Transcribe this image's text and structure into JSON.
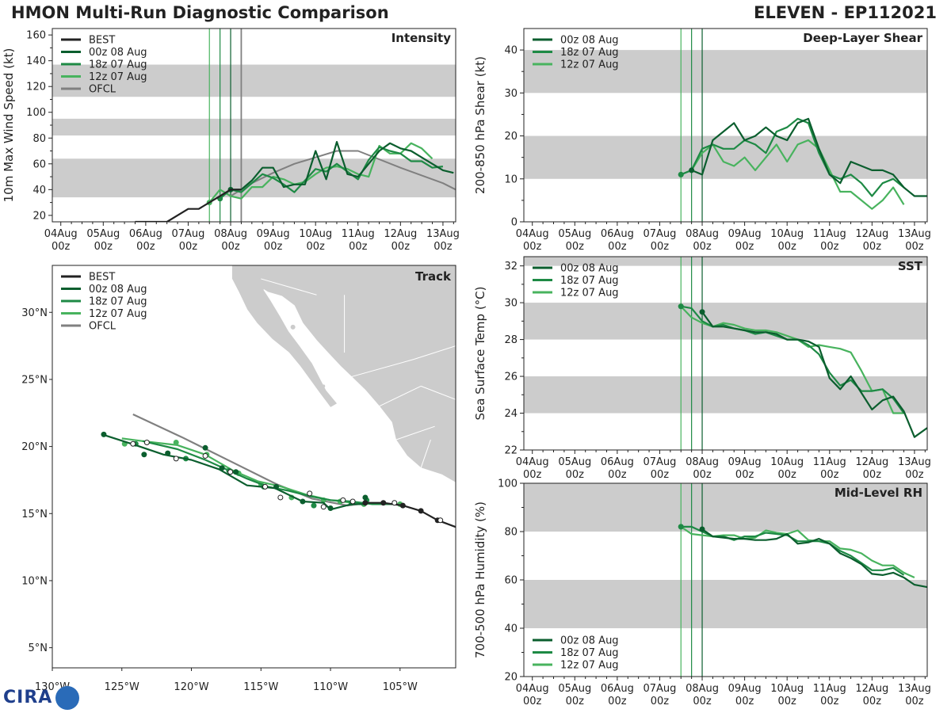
{
  "header": {
    "title": "HMON Multi-Run Diagnostic Comparison",
    "storm": "ELEVEN - EP112021"
  },
  "logo": {
    "text": "CIRA"
  },
  "colors": {
    "best": "#222222",
    "run00": "#0b5e2e",
    "run18": "#1e8a45",
    "run12": "#48b35e",
    "ofcl": "#808080",
    "band": "#cccccc",
    "land": "#cccccc"
  },
  "time_axis": {
    "ticks": [
      "04Aug",
      "05Aug",
      "06Aug",
      "07Aug",
      "08Aug",
      "09Aug",
      "10Aug",
      "11Aug",
      "12Aug",
      "13Aug"
    ],
    "tick_sub": "00z",
    "xlim": [
      -4.2,
      5.3
    ],
    "run_markers": [
      -0.5,
      -0.25,
      0.0
    ],
    "ofcl_marker": 0.25
  },
  "chart_data": [
    {
      "id": "intensity",
      "type": "line",
      "title": "Intensity",
      "ylabel": "10m Max Wind Speed (kt)",
      "ylim": [
        15,
        165
      ],
      "yticks": [
        20,
        40,
        60,
        80,
        100,
        120,
        140,
        160
      ],
      "bands": [
        [
          34,
          64
        ],
        [
          82,
          95
        ],
        [
          112,
          137
        ]
      ],
      "legend": [
        "BEST",
        "00z 08 Aug",
        "18z 07 Aug",
        "12z 07 Aug",
        "OFCL"
      ],
      "series": [
        {
          "name": "BEST",
          "x": [
            -2.25,
            -1.5,
            -1.0,
            -0.75,
            -0.5,
            -0.25,
            0.0,
            0.25
          ],
          "y": [
            15,
            15,
            25,
            25,
            30,
            35,
            40,
            40
          ]
        },
        {
          "name": "00z 08 Aug",
          "x": [
            0.0,
            0.25,
            0.5,
            0.75,
            1.0,
            1.25,
            1.5,
            1.75,
            2.0,
            2.25,
            2.5,
            2.75,
            3.0,
            3.25,
            3.5,
            3.75,
            4.0,
            4.25,
            4.5,
            4.75,
            5.0,
            5.25
          ],
          "y": [
            40,
            40,
            47,
            57,
            57,
            42,
            44,
            44,
            70,
            48,
            77,
            52,
            50,
            60,
            70,
            76,
            72,
            70,
            65,
            60,
            55,
            53
          ]
        },
        {
          "name": "18z 07 Aug",
          "x": [
            -0.25,
            0.0,
            0.25,
            0.5,
            0.75,
            1.0,
            1.25,
            1.5,
            1.75,
            2.0,
            2.25,
            2.5,
            2.75,
            3.0,
            3.25,
            3.5,
            3.75,
            4.0,
            4.25,
            4.5,
            4.75,
            5.0
          ],
          "y": [
            33,
            40,
            38,
            45,
            52,
            49,
            44,
            38,
            47,
            56,
            54,
            60,
            54,
            48,
            63,
            73,
            70,
            68,
            62,
            62,
            57,
            58
          ]
        },
        {
          "name": "12z 07 Aug",
          "x": [
            -0.5,
            -0.25,
            0.0,
            0.25,
            0.5,
            0.75,
            1.0,
            1.25,
            1.5,
            1.75,
            2.0,
            2.25,
            2.5,
            2.75,
            3.0,
            3.25,
            3.5,
            3.75,
            4.0,
            4.25,
            4.5,
            4.75
          ],
          "y": [
            30,
            40,
            35,
            33,
            42,
            42,
            50,
            48,
            44,
            46,
            52,
            57,
            58,
            56,
            52,
            50,
            74,
            68,
            68,
            76,
            72,
            64
          ]
        },
        {
          "name": "OFCL",
          "x": [
            0.0,
            0.25,
            0.5,
            1.0,
            1.5,
            2.0,
            2.5,
            3.0,
            4.0,
            5.0,
            5.3
          ],
          "y": [
            35,
            40,
            45,
            53,
            60,
            65,
            70,
            70,
            57,
            45,
            40
          ]
        }
      ]
    },
    {
      "id": "shear",
      "type": "line",
      "title": "Deep-Layer Shear",
      "ylabel": "200-850 hPa Shear (kt)",
      "ylim": [
        0,
        45
      ],
      "yticks": [
        0,
        10,
        20,
        30,
        40
      ],
      "bands": [
        [
          10,
          20
        ],
        [
          30,
          40
        ]
      ],
      "legend": [
        "00z 08 Aug",
        "18z 07 Aug",
        "12z 07 Aug"
      ],
      "series": [
        {
          "name": "00z 08 Aug",
          "x": [
            -0.25,
            0.0,
            0.25,
            0.5,
            0.75,
            1.0,
            1.25,
            1.5,
            1.75,
            2.0,
            2.25,
            2.5,
            2.75,
            3.0,
            3.25,
            3.5,
            3.75,
            4.0,
            4.25,
            4.5,
            4.75,
            5.0,
            5.3
          ],
          "y": [
            12,
            11,
            19,
            21,
            23,
            19,
            20,
            22,
            20,
            19,
            23,
            24,
            17,
            11,
            9,
            14,
            13,
            12,
            12,
            11,
            8,
            6,
            6
          ]
        },
        {
          "name": "18z 07 Aug",
          "x": [
            -0.5,
            -0.25,
            0.0,
            0.25,
            0.5,
            0.75,
            1.0,
            1.25,
            1.5,
            1.75,
            2.0,
            2.25,
            2.5,
            2.75,
            3.0,
            3.25,
            3.5,
            3.75,
            4.0,
            4.25,
            4.5,
            4.75
          ],
          "y": [
            11,
            12,
            17,
            18,
            17,
            17,
            19,
            18,
            16,
            21,
            22,
            24,
            23,
            16,
            11,
            10,
            11,
            9,
            6,
            9,
            10,
            8
          ]
        },
        {
          "name": "12z 07 Aug",
          "x": [
            -0.5,
            -0.25,
            0.0,
            0.25,
            0.5,
            0.75,
            1.0,
            1.25,
            1.5,
            1.75,
            2.0,
            2.25,
            2.5,
            2.75,
            3.0,
            3.25,
            3.5,
            3.75,
            4.0,
            4.25,
            4.5,
            4.75
          ],
          "y": [
            11,
            12,
            16,
            18,
            14,
            13,
            15,
            12,
            15,
            18,
            14,
            18,
            19,
            17,
            12,
            7,
            7,
            5,
            3,
            5,
            8,
            4
          ]
        }
      ]
    },
    {
      "id": "sst",
      "type": "line",
      "title": "SST",
      "ylabel": "Sea Surface Temp (°C)",
      "ylim": [
        22,
        32.5
      ],
      "yticks": [
        22,
        24,
        26,
        28,
        30,
        32
      ],
      "bands": [
        [
          24,
          26
        ],
        [
          28,
          30
        ],
        [
          32,
          33
        ]
      ],
      "legend": [
        "00z 08 Aug",
        "18z 07 Aug",
        "12z 07 Aug"
      ],
      "series": [
        {
          "name": "00z 08 Aug",
          "x": [
            0.0,
            0.25,
            0.5,
            0.75,
            1.0,
            1.25,
            1.5,
            1.75,
            2.0,
            2.25,
            2.5,
            2.75,
            3.0,
            3.25,
            3.5,
            3.75,
            4.0,
            4.25,
            4.5,
            4.75,
            5.0,
            5.3
          ],
          "y": [
            29.5,
            28.7,
            28.7,
            28.6,
            28.5,
            28.4,
            28.4,
            28.3,
            28.0,
            28.0,
            27.9,
            27.6,
            25.9,
            25.3,
            26.0,
            25.1,
            24.2,
            24.7,
            24.9,
            24.1,
            22.7,
            23.2
          ]
        },
        {
          "name": "18z 07 Aug",
          "x": [
            -0.5,
            -0.25,
            0.0,
            0.25,
            0.5,
            0.75,
            1.0,
            1.25,
            1.5,
            1.75,
            2.0,
            2.25,
            2.5,
            2.75,
            3.0,
            3.25,
            3.5,
            3.75,
            4.0,
            4.25,
            4.5,
            4.75
          ],
          "y": [
            29.8,
            29.7,
            29.0,
            28.7,
            28.8,
            28.6,
            28.5,
            28.3,
            28.4,
            28.2,
            28.0,
            28.0,
            27.7,
            27.2,
            26.2,
            25.5,
            25.8,
            25.2,
            25.2,
            25.3,
            24.8,
            24.0
          ]
        },
        {
          "name": "12z 07 Aug",
          "x": [
            -0.5,
            -0.25,
            0.0,
            0.25,
            0.5,
            0.75,
            1.0,
            1.25,
            1.5,
            1.75,
            2.0,
            2.25,
            2.5,
            2.75,
            3.0,
            3.25,
            3.5,
            3.75,
            4.0,
            4.25,
            4.5,
            4.75
          ],
          "y": [
            29.8,
            29.2,
            28.9,
            28.7,
            28.9,
            28.8,
            28.6,
            28.5,
            28.5,
            28.4,
            28.2,
            28.0,
            27.6,
            27.7,
            27.6,
            27.5,
            27.3,
            26.3,
            25.2,
            25.3,
            24.0,
            24.0
          ]
        }
      ]
    },
    {
      "id": "rh",
      "type": "line",
      "title": "Mid-Level RH",
      "ylabel": "700-500 hPa Humidity (%)",
      "ylim": [
        20,
        100
      ],
      "yticks": [
        20,
        40,
        60,
        80,
        100
      ],
      "bands": [
        [
          40,
          60
        ],
        [
          80,
          100
        ]
      ],
      "legend": [
        "00z 08 Aug",
        "18z 07 Aug",
        "12z 07 Aug"
      ],
      "series": [
        {
          "name": "00z 08 Aug",
          "x": [
            0.0,
            0.25,
            0.5,
            0.75,
            1.0,
            1.25,
            1.5,
            1.75,
            2.0,
            2.25,
            2.5,
            2.75,
            3.0,
            3.25,
            3.5,
            3.75,
            4.0,
            4.25,
            4.5,
            4.75,
            5.0,
            5.3
          ],
          "y": [
            81,
            78,
            77.5,
            77,
            77,
            76.5,
            76.5,
            77,
            79,
            75,
            75.5,
            77,
            75,
            71,
            69,
            66.5,
            62.5,
            62,
            63,
            61,
            58,
            57
          ]
        },
        {
          "name": "18z 07 Aug",
          "x": [
            -0.5,
            -0.25,
            0.0,
            0.25,
            0.5,
            0.75,
            1.0,
            1.25,
            1.5,
            1.75,
            2.0,
            2.25,
            2.5,
            2.75,
            3.0,
            3.25,
            3.5,
            3.75,
            4.0,
            4.25,
            4.5,
            4.75
          ],
          "y": [
            82,
            82,
            80,
            78,
            78,
            76.5,
            78,
            78,
            79.5,
            79,
            78.5,
            76,
            76,
            76,
            75,
            72,
            70,
            67,
            64,
            64,
            65,
            62
          ]
        },
        {
          "name": "12z 07 Aug",
          "x": [
            -0.5,
            -0.25,
            0.0,
            0.25,
            0.5,
            0.75,
            1.0,
            1.25,
            1.5,
            1.75,
            2.0,
            2.25,
            2.5,
            2.75,
            3.0,
            3.25,
            3.5,
            3.75,
            4.0,
            4.25,
            4.5,
            4.75,
            5.0
          ],
          "y": [
            82,
            79,
            78.5,
            78,
            78.5,
            78.5,
            77,
            77.5,
            80.5,
            79.5,
            79,
            80.5,
            76.5,
            76,
            76,
            73,
            72.5,
            71,
            68,
            66,
            66,
            63,
            61
          ]
        }
      ]
    },
    {
      "id": "track",
      "type": "line",
      "title": "Track",
      "lon_range": [
        -130,
        -101
      ],
      "lat_range": [
        3.5,
        33.5
      ],
      "xticks": [
        -130,
        -125,
        -120,
        -115,
        -110,
        -105
      ],
      "xtick_labels": [
        "130°W",
        "125°W",
        "120°W",
        "115°W",
        "110°W",
        "105°W"
      ],
      "yticks": [
        5,
        10,
        15,
        20,
        25,
        30
      ],
      "ytick_labels": [
        "5°N",
        "10°N",
        "15°N",
        "20°N",
        "25°N",
        "30°N"
      ],
      "legend": [
        "BEST",
        "00z 08 Aug",
        "18z 07 Aug",
        "12z 07 Aug",
        "OFCL"
      ],
      "series": [
        {
          "name": "BEST",
          "lon": [
            -101,
            -102.3,
            -103.5,
            -104.8,
            -106.2,
            -107.5
          ],
          "lat": [
            14.0,
            14.5,
            15.2,
            15.6,
            15.8,
            15.8
          ]
        },
        {
          "name": "OFCL",
          "lon": [
            -124.2,
            -120.7,
            -117.2,
            -113.9,
            -111.3,
            -108.8,
            -107.2
          ],
          "lat": [
            22.4,
            20.7,
            18.9,
            17.2,
            16.1,
            15.6,
            15.8
          ]
        },
        {
          "name": "00z 08 Aug",
          "lon": [
            -107.5,
            -108.5,
            -110,
            -110.5,
            -112,
            -114,
            -116,
            -118,
            -120,
            -122,
            -124,
            -126.4
          ],
          "lat": [
            15.7,
            15.7,
            15.3,
            15.8,
            15.9,
            16.9,
            17.1,
            18.3,
            19.0,
            19.4,
            20.1,
            20.9
          ],
          "dots_lon": [
            -107.5,
            -110.0,
            -112.0,
            -113.9,
            -116.8,
            -117.8,
            -119.0,
            -121.7,
            -123.4,
            -126.3
          ],
          "dots_lat": [
            16.2,
            15.4,
            15.9,
            17.0,
            18.1,
            18.4,
            19.9,
            19.5,
            19.4,
            20.9
          ]
        },
        {
          "name": "18z 07 Aug",
          "lon": [
            -105.5,
            -107,
            -108.5,
            -110,
            -111.5,
            -113,
            -114.5,
            -116,
            -117.5,
            -119,
            -121,
            -123.5
          ],
          "lat": [
            15.7,
            15.7,
            15.9,
            16.0,
            16.3,
            16.7,
            17.0,
            17.6,
            18.3,
            19.0,
            19.8,
            20.4
          ],
          "dots_lon": [
            -107.4,
            -108.5,
            -111.2,
            -114.8,
            -117.3,
            -120.4,
            -124.0
          ],
          "dots_lat": [
            16.0,
            15.8,
            15.6,
            17.0,
            18.2,
            19.1,
            20.2
          ]
        },
        {
          "name": "12z 07 Aug",
          "lon": [
            -104.8,
            -106.5,
            -108.4,
            -110,
            -111.7,
            -113.5,
            -115.2,
            -117,
            -119,
            -121,
            -123.5,
            -125
          ],
          "lat": [
            15.7,
            15.7,
            15.8,
            16.0,
            16.4,
            17.0,
            17.4,
            18.2,
            19.4,
            20.1,
            20.4,
            20.6
          ],
          "dots_lon": [
            -105.0,
            -107.6,
            -109.3,
            -110.5,
            -112.8,
            -115.0,
            -116.6,
            -118.9,
            -121.1,
            -124.8
          ],
          "dots_lat": [
            15.7,
            15.7,
            15.9,
            16.0,
            16.2,
            17.2,
            18.0,
            19.4,
            20.3,
            20.2
          ]
        }
      ],
      "open_markers": {
        "lon": [
          -102.1,
          -105.4,
          -108.4,
          -109.1,
          -110.5,
          -111.5,
          -113.6,
          -114.7,
          -117.2,
          -119.0,
          -121.1,
          -123.2,
          -124.2
        ],
        "lat": [
          14.5,
          15.8,
          15.9,
          16.0,
          15.5,
          16.5,
          16.2,
          17.0,
          18.1,
          19.3,
          19.1,
          20.3,
          20.2
        ]
      }
    }
  ]
}
